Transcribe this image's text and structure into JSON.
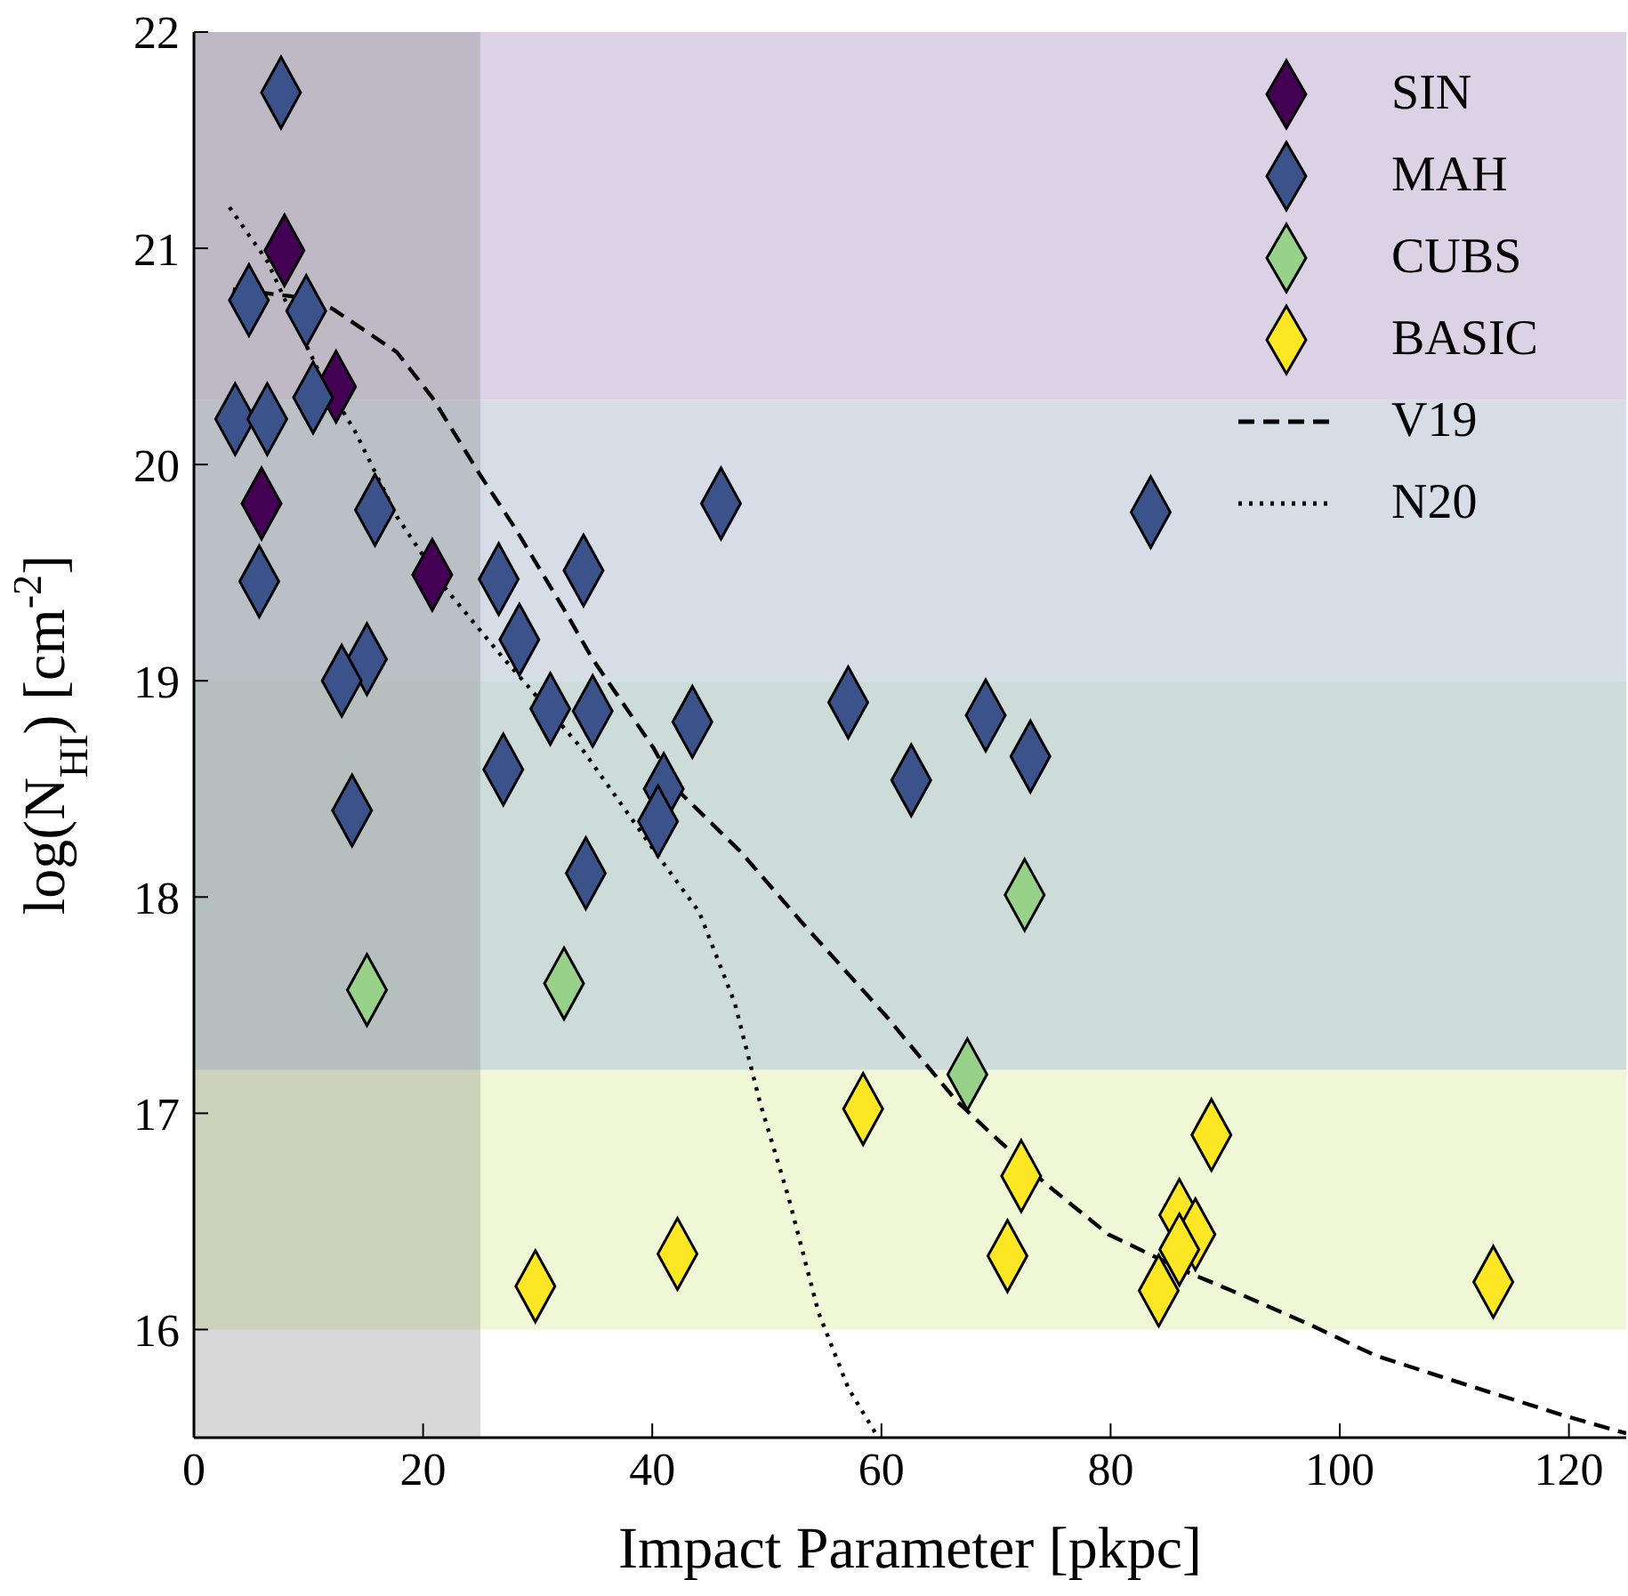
{
  "chart_data": {
    "type": "scatter",
    "xlabel": "Impact Parameter [pkpc]",
    "ylabel": "log(N$_{HI}$) [cm$^{-2}$]",
    "xlim": [
      0,
      125
    ],
    "xticks": [
      0,
      20,
      40,
      60,
      80,
      100,
      120
    ],
    "ylim": [
      15.5,
      22
    ],
    "yticks": [
      16,
      17,
      18,
      19,
      20,
      21,
      22
    ],
    "grid": false,
    "legend": "top right",
    "marker": "diamond",
    "bands": [
      {
        "axis": "y",
        "from": 20.3,
        "to": 22,
        "label": null,
        "color": "#dbd3e5"
      },
      {
        "axis": "y",
        "from": 19,
        "to": 20.3,
        "label": null,
        "color": "#d6dde7"
      },
      {
        "axis": "y",
        "from": 17.2,
        "to": 19,
        "label": null,
        "color": "#cddcd9"
      },
      {
        "axis": "y",
        "from": 16,
        "to": 17.2,
        "label": null,
        "color": "#f0f7d6"
      },
      {
        "axis": "x",
        "from": 0,
        "to": 25,
        "label": null,
        "color": "#7f7f7f"
      }
    ],
    "series": [
      {
        "name": "SIN",
        "color": "#440154",
        "x": [
          7.9,
          12.4,
          5.9,
          20.8
        ],
        "values": [
          20.99,
          20.36,
          19.82,
          19.49
        ]
      },
      {
        "name": "MAH",
        "color": "#3b528b",
        "x": [
          7.6,
          4.8,
          9.8,
          10.4,
          3.6,
          6.4,
          15.8,
          46.0,
          5.7,
          26.6,
          34.0,
          28.4,
          15.1,
          12.9,
          31.1,
          34.8,
          43.5,
          27.0,
          13.8,
          41.0,
          40.5,
          34.2,
          83.5,
          57.1,
          69.1,
          73.0,
          62.6
        ],
        "values": [
          21.72,
          20.76,
          20.71,
          20.31,
          20.21,
          20.21,
          19.79,
          19.82,
          19.46,
          19.47,
          19.51,
          19.19,
          19.1,
          19.0,
          18.87,
          18.86,
          18.81,
          18.59,
          18.4,
          18.5,
          18.35,
          18.11,
          19.78,
          18.9,
          18.84,
          18.65,
          18.54
        ]
      },
      {
        "name": "CUBS",
        "color": "#98d18a",
        "x": [
          15.1,
          32.3,
          72.5,
          67.5
        ],
        "values": [
          17.57,
          17.6,
          18.01,
          17.18
        ]
      },
      {
        "name": "BASIC",
        "color": "#fde725",
        "x": [
          29.8,
          42.2,
          58.4,
          72.2,
          71.0,
          88.8,
          86.0,
          87.4,
          86.0,
          84.2,
          113.4
        ],
        "values": [
          16.2,
          16.35,
          17.02,
          16.71,
          16.34,
          16.9,
          16.53,
          16.44,
          16.37,
          16.18,
          16.22
        ]
      },
      {
        "name": "V19",
        "type": "line",
        "color": "#000000",
        "line_style": "dashed",
        "marker": "none",
        "x": [
          3.4,
          9.8,
          12.1,
          17.7,
          20.8,
          25.0,
          28.1,
          32.3,
          34.8,
          40.1,
          42.1,
          47.7,
          53.1,
          60.4,
          66.5,
          69.3,
          74.2,
          79.8,
          86.5,
          91.9,
          97.5,
          103.1,
          111.3,
          119.7,
          125
        ],
        "values": [
          20.81,
          20.77,
          20.72,
          20.52,
          20.31,
          19.95,
          19.7,
          19.33,
          19.1,
          18.69,
          18.5,
          18.21,
          17.88,
          17.45,
          17.06,
          16.92,
          16.68,
          16.44,
          16.27,
          16.15,
          16.02,
          15.88,
          15.74,
          15.6,
          15.52
        ]
      },
      {
        "name": "N20",
        "type": "line",
        "color": "#000000",
        "line_style": "dotted",
        "marker": "none",
        "x": [
          3.1,
          6.4,
          9.0,
          11.0,
          14.1,
          17.7,
          21.9,
          26.6,
          30.7,
          33.8,
          40.1,
          44.1,
          47.2,
          49.4,
          51.9,
          54.5,
          57.1,
          59.6
        ],
        "values": [
          21.19,
          20.94,
          20.64,
          20.42,
          20.15,
          19.76,
          19.43,
          19.13,
          18.88,
          18.69,
          18.22,
          17.93,
          17.51,
          17.05,
          16.61,
          16.08,
          15.73,
          15.51
        ]
      }
    ]
  }
}
